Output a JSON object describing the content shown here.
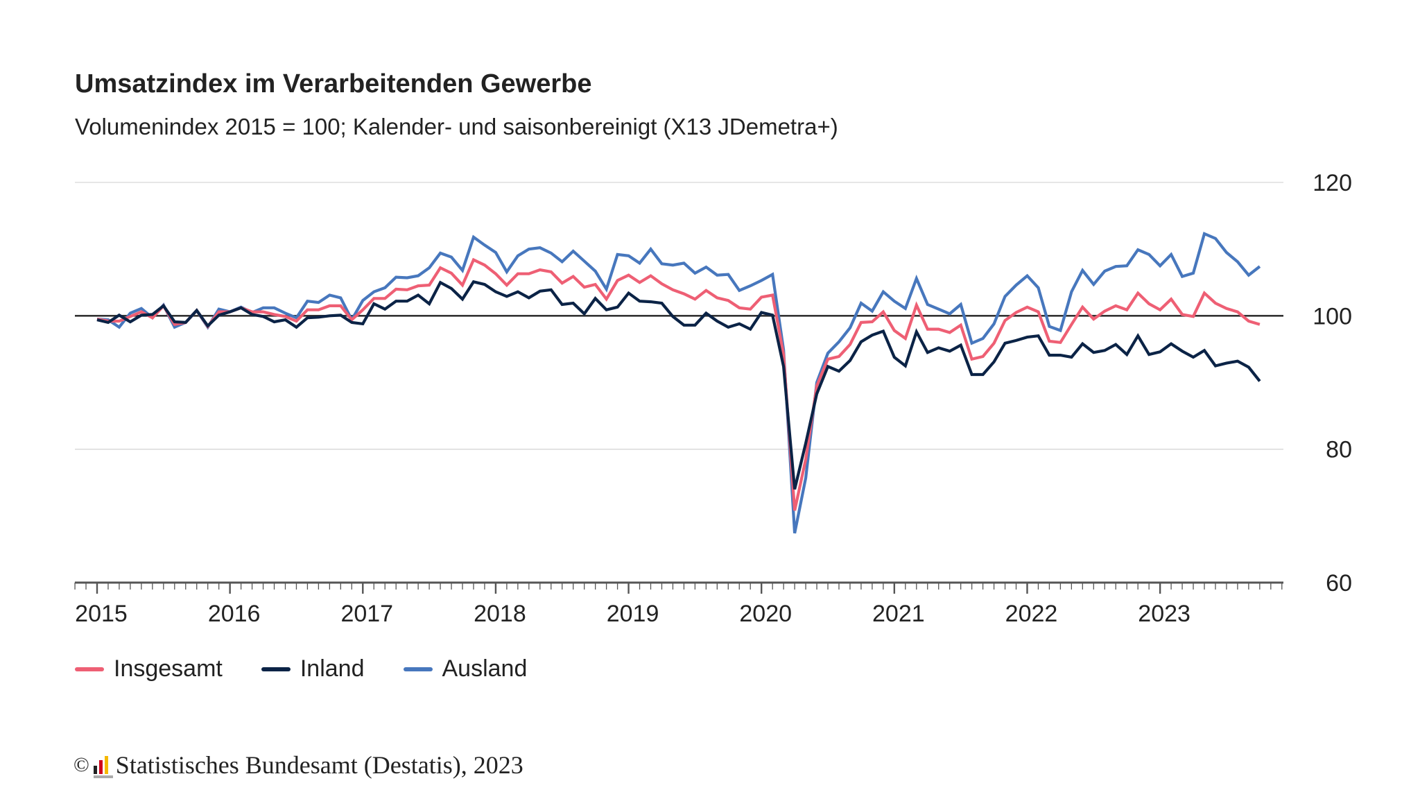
{
  "chart_data": {
    "type": "line",
    "title": "Umsatzindex im Verarbeitenden Gewerbe",
    "subtitle": "Volumenindex 2015 = 100; Kalender- und saisonbereinigt (X13 JDemetra+)",
    "x_tick_labels": [
      "2015",
      "2016",
      "2017",
      "2018",
      "2019",
      "2020",
      "2021",
      "2022",
      "2023"
    ],
    "y_tick_labels": [
      "120",
      "100",
      "80",
      "60"
    ],
    "ylim": [
      60,
      120
    ],
    "y_ticks": [
      60,
      80,
      100,
      120
    ],
    "reference_line": 100,
    "grid": true,
    "y_axis_side": "right",
    "legend_position": "bottom-left",
    "x": [
      "2015-01",
      "2015-02",
      "2015-03",
      "2015-04",
      "2015-05",
      "2015-06",
      "2015-07",
      "2015-08",
      "2015-09",
      "2015-10",
      "2015-11",
      "2015-12",
      "2016-01",
      "2016-02",
      "2016-03",
      "2016-04",
      "2016-05",
      "2016-06",
      "2016-07",
      "2016-08",
      "2016-09",
      "2016-10",
      "2016-11",
      "2016-12",
      "2017-01",
      "2017-02",
      "2017-03",
      "2017-04",
      "2017-05",
      "2017-06",
      "2017-07",
      "2017-08",
      "2017-09",
      "2017-10",
      "2017-11",
      "2017-12",
      "2018-01",
      "2018-02",
      "2018-03",
      "2018-04",
      "2018-05",
      "2018-06",
      "2018-07",
      "2018-08",
      "2018-09",
      "2018-10",
      "2018-11",
      "2018-12",
      "2019-01",
      "2019-02",
      "2019-03",
      "2019-04",
      "2019-05",
      "2019-06",
      "2019-07",
      "2019-08",
      "2019-09",
      "2019-10",
      "2019-11",
      "2019-12",
      "2020-01",
      "2020-02",
      "2020-03",
      "2020-04",
      "2020-05",
      "2020-06",
      "2020-07",
      "2020-08",
      "2020-09",
      "2020-10",
      "2020-11",
      "2020-12",
      "2021-01",
      "2021-02",
      "2021-03",
      "2021-04",
      "2021-05",
      "2021-06",
      "2021-07",
      "2021-08",
      "2021-09",
      "2021-10",
      "2021-11",
      "2021-12",
      "2022-01",
      "2022-02",
      "2022-03",
      "2022-04",
      "2022-05",
      "2022-06",
      "2022-07",
      "2022-08",
      "2022-09",
      "2022-10",
      "2022-11",
      "2022-12",
      "2023-01",
      "2023-02",
      "2023-03",
      "2023-04",
      "2023-05",
      "2023-06",
      "2023-07",
      "2023-08",
      "2023-09",
      "2023-10"
    ],
    "series": [
      {
        "name": "Insgesamt",
        "color": "#ee5f74",
        "values": [
          99.5,
          99.2,
          99.2,
          99.9,
          100.6,
          99.7,
          101.5,
          98.7,
          99.0,
          100.8,
          98.4,
          100.6,
          100.6,
          101.2,
          100.6,
          100.6,
          100.2,
          99.9,
          99.2,
          100.9,
          100.9,
          101.5,
          101.5,
          99.4,
          100.9,
          102.6,
          102.6,
          104.0,
          103.9,
          104.5,
          104.6,
          107.2,
          106.4,
          104.6,
          108.4,
          107.6,
          106.3,
          104.6,
          106.3,
          106.3,
          106.9,
          106.6,
          104.9,
          105.9,
          104.3,
          104.7,
          102.5,
          105.3,
          106.1,
          105.0,
          106.0,
          104.8,
          103.9,
          103.3,
          102.5,
          103.8,
          102.7,
          102.3,
          101.2,
          101.0,
          102.8,
          103.1,
          94.2,
          70.8,
          78.5,
          89.5,
          93.5,
          93.9,
          95.7,
          99.0,
          99.1,
          100.6,
          97.8,
          96.6,
          101.6,
          98.0,
          98.0,
          97.5,
          98.6,
          93.5,
          93.9,
          95.9,
          99.3,
          100.5,
          101.3,
          100.6,
          96.2,
          96.0,
          98.7,
          101.3,
          99.5,
          100.7,
          101.5,
          100.9,
          103.4,
          101.8,
          100.9,
          102.5,
          100.2,
          99.9,
          103.4,
          101.9,
          101.1,
          100.6,
          99.2,
          98.7
        ]
      },
      {
        "name": "Inland",
        "color": "#0b2346",
        "values": [
          99.4,
          99.0,
          100.1,
          99.1,
          100.1,
          100.2,
          101.5,
          99.1,
          99.0,
          100.8,
          98.5,
          100.1,
          100.6,
          101.2,
          100.2,
          99.9,
          99.1,
          99.4,
          98.3,
          99.7,
          99.8,
          100.0,
          100.1,
          99.0,
          98.8,
          101.8,
          101.0,
          102.2,
          102.2,
          103.1,
          101.8,
          105.0,
          104.1,
          102.5,
          105.1,
          104.7,
          103.6,
          102.9,
          103.6,
          102.7,
          103.7,
          103.9,
          101.7,
          101.9,
          100.3,
          102.6,
          100.9,
          101.3,
          103.4,
          102.2,
          102.1,
          101.9,
          99.9,
          98.6,
          98.6,
          100.4,
          99.2,
          98.3,
          98.8,
          98.0,
          100.5,
          100.1,
          92.4,
          74.0,
          80.9,
          88.3,
          92.4,
          91.7,
          93.3,
          96.1,
          97.1,
          97.7,
          93.8,
          92.5,
          97.6,
          94.5,
          95.2,
          94.7,
          95.6,
          91.2,
          91.2,
          93.1,
          95.9,
          96.3,
          96.8,
          97.0,
          94.1,
          94.1,
          93.8,
          95.8,
          94.5,
          94.8,
          95.7,
          94.2,
          97.0,
          94.2,
          94.6,
          95.8,
          94.7,
          93.8,
          94.8,
          92.5,
          92.9,
          93.2,
          92.3,
          90.2
        ]
      },
      {
        "name": "Ausland",
        "color": "#4777bd",
        "values": [
          99.5,
          99.4,
          98.3,
          100.4,
          101.1,
          99.7,
          101.6,
          98.3,
          99.0,
          100.8,
          98.3,
          101.0,
          100.6,
          101.3,
          100.5,
          101.2,
          101.2,
          100.4,
          99.7,
          102.2,
          102.0,
          103.1,
          102.7,
          99.4,
          102.3,
          103.6,
          104.2,
          105.8,
          105.7,
          106.0,
          107.2,
          109.4,
          108.8,
          106.8,
          111.8,
          110.6,
          109.5,
          106.6,
          109.0,
          110.0,
          110.2,
          109.4,
          108.1,
          109.7,
          108.2,
          106.7,
          104.0,
          109.2,
          109.0,
          107.9,
          110.0,
          107.8,
          107.6,
          107.9,
          106.4,
          107.3,
          106.1,
          106.2,
          103.8,
          104.5,
          105.3,
          106.2,
          94.9,
          67.4,
          75.7,
          90.0,
          94.4,
          96.1,
          98.2,
          101.9,
          100.7,
          103.6,
          102.2,
          101.1,
          105.6,
          101.7,
          101.0,
          100.3,
          101.7,
          95.9,
          96.6,
          98.8,
          102.9,
          104.6,
          106.0,
          104.2,
          98.4,
          97.8,
          103.6,
          106.8,
          104.7,
          106.7,
          107.4,
          107.5,
          109.9,
          109.2,
          107.5,
          109.2,
          105.9,
          106.4,
          112.3,
          111.6,
          109.5,
          108.1,
          106.1,
          107.4
        ]
      }
    ]
  },
  "footer": {
    "copyright_symbol": "©",
    "source": "Statistisches Bundesamt (Destatis), 2023"
  }
}
